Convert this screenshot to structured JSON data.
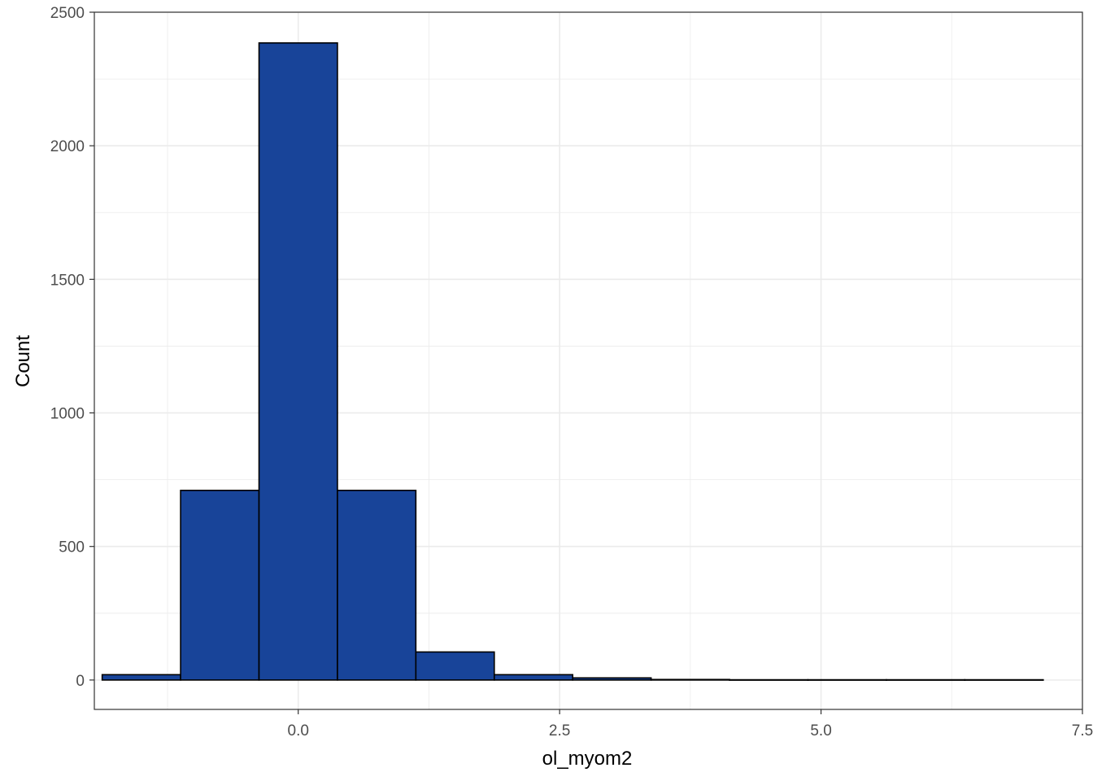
{
  "chart_data": {
    "type": "bar",
    "subtype": "histogram",
    "title": "",
    "xlabel": "ol_myom2",
    "ylabel": "Count",
    "xlim": [
      -1.95,
      7.5
    ],
    "ylim": [
      -110,
      2500
    ],
    "x_ticks": [
      0.0,
      2.5,
      5.0,
      7.5
    ],
    "x_tick_labels": [
      "0.0",
      "2.5",
      "5.0",
      "7.5"
    ],
    "y_ticks": [
      0,
      500,
      1000,
      1500,
      2000,
      2500
    ],
    "y_tick_labels": [
      "0",
      "500",
      "1000",
      "1500",
      "2000",
      "2500"
    ],
    "bins": [
      {
        "x0": -1.875,
        "x1": -1.125,
        "count": 20
      },
      {
        "x0": -1.125,
        "x1": -0.375,
        "count": 710
      },
      {
        "x0": -0.375,
        "x1": 0.375,
        "count": 2385
      },
      {
        "x0": 0.375,
        "x1": 1.125,
        "count": 710
      },
      {
        "x0": 1.125,
        "x1": 1.875,
        "count": 105
      },
      {
        "x0": 1.875,
        "x1": 2.625,
        "count": 20
      },
      {
        "x0": 2.625,
        "x1": 3.375,
        "count": 8
      },
      {
        "x0": 3.375,
        "x1": 4.125,
        "count": 2
      },
      {
        "x0": 4.125,
        "x1": 4.875,
        "count": 1
      },
      {
        "x0": 4.875,
        "x1": 5.625,
        "count": 1
      },
      {
        "x0": 5.625,
        "x1": 6.375,
        "count": 1
      },
      {
        "x0": 6.375,
        "x1": 7.125,
        "count": 1
      }
    ],
    "grid": true,
    "legend": "none",
    "bar_fill": "#184499",
    "bar_outline": "#000000",
    "grid_color": "#ebebeb",
    "panel_border_color": "#333333"
  }
}
